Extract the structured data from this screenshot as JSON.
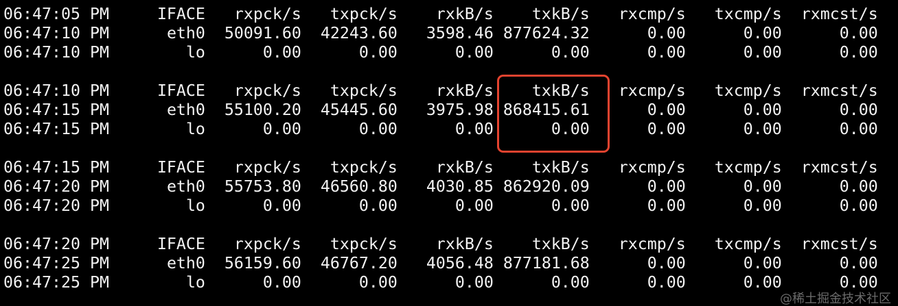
{
  "blocks": [
    {
      "header": [
        "06:47:05 PM",
        "IFACE",
        "rxpck/s",
        "txpck/s",
        "rxkB/s",
        "txkB/s",
        "rxcmp/s",
        "txcmp/s",
        "rxmcst/s"
      ],
      "rows": [
        [
          "06:47:10 PM",
          "eth0",
          "50091.60",
          "42243.60",
          "3598.46",
          "877624.32",
          "0.00",
          "0.00",
          "0.00"
        ],
        [
          "06:47:10 PM",
          "lo",
          "0.00",
          "0.00",
          "0.00",
          "0.00",
          "0.00",
          "0.00",
          "0.00"
        ]
      ]
    },
    {
      "header": [
        "06:47:10 PM",
        "IFACE",
        "rxpck/s",
        "txpck/s",
        "rxkB/s",
        "txkB/s",
        "rxcmp/s",
        "txcmp/s",
        "rxmcst/s"
      ],
      "rows": [
        [
          "06:47:15 PM",
          "eth0",
          "55100.20",
          "45445.60",
          "3975.98",
          "868415.61",
          "0.00",
          "0.00",
          "0.00"
        ],
        [
          "06:47:15 PM",
          "lo",
          "0.00",
          "0.00",
          "0.00",
          "0.00",
          "0.00",
          "0.00",
          "0.00"
        ]
      ]
    },
    {
      "header": [
        "06:47:15 PM",
        "IFACE",
        "rxpck/s",
        "txpck/s",
        "rxkB/s",
        "txkB/s",
        "rxcmp/s",
        "txcmp/s",
        "rxmcst/s"
      ],
      "rows": [
        [
          "06:47:20 PM",
          "eth0",
          "55753.80",
          "46560.80",
          "4030.85",
          "862920.09",
          "0.00",
          "0.00",
          "0.00"
        ],
        [
          "06:47:20 PM",
          "lo",
          "0.00",
          "0.00",
          "0.00",
          "0.00",
          "0.00",
          "0.00",
          "0.00"
        ]
      ]
    },
    {
      "header": [
        "06:47:20 PM",
        "IFACE",
        "rxpck/s",
        "txpck/s",
        "rxkB/s",
        "txkB/s",
        "rxcmp/s",
        "txcmp/s",
        "rxmcst/s"
      ],
      "rows": [
        [
          "06:47:25 PM",
          "eth0",
          "56159.60",
          "46767.20",
          "4056.48",
          "877181.68",
          "0.00",
          "0.00",
          "0.00"
        ],
        [
          "06:47:25 PM",
          "lo",
          "0.00",
          "0.00",
          "0.00",
          "0.00",
          "0.00",
          "0.00",
          "0.00"
        ]
      ]
    }
  ],
  "highlight": {
    "color": "#e5432f",
    "block": 1,
    "column": "txkB/s"
  },
  "watermark": "@稀土掘金技术社区"
}
